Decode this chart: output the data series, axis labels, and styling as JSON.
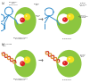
{
  "background": "#ffffff",
  "ribosome_color": "#8cc63f",
  "ribosome_light": "#a8d45a",
  "yellow_sphere": "#f5e020",
  "red_sphere": "#dd2222",
  "tRNA_color": "#3a8fcc",
  "dna_color1": "#cc3322",
  "dna_color2": "#dd8833",
  "arrow_color": "#555555",
  "label_color": "#333333",
  "sublabel_color": "#444444",
  "text_color": "#222222"
}
